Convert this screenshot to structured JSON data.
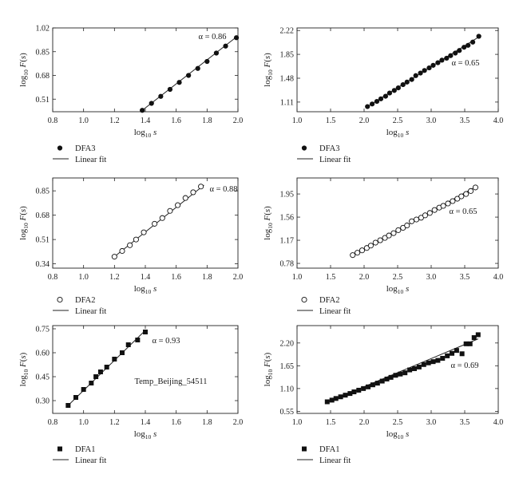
{
  "chart_data": [
    {
      "type": "scatter",
      "xlabel": "log10 s",
      "ylabel": "log10 F(s)",
      "xlim": [
        0.8,
        2.0
      ],
      "ylim": [
        0.42,
        1.02
      ],
      "xticks": [
        "0.8",
        "1.0",
        "1.2",
        "1.4",
        "1.6",
        "1.8",
        "2.0"
      ],
      "yticks": [
        "0.51",
        "0.68",
        "0.85",
        "1.02"
      ],
      "annotation": "α = 0.86",
      "legend": [
        {
          "marker": "filled-circle",
          "label": "DFA3"
        },
        {
          "marker": "line",
          "label": "Linear fit"
        }
      ],
      "marker": "filled-circle",
      "series": [
        {
          "x": [
            1.38,
            1.44,
            1.5,
            1.56,
            1.62,
            1.68,
            1.74,
            1.8,
            1.86,
            1.92,
            1.99
          ],
          "y": [
            0.43,
            0.48,
            0.53,
            0.58,
            0.63,
            0.68,
            0.73,
            0.78,
            0.84,
            0.89,
            0.95
          ]
        }
      ],
      "fit": {
        "x": [
          1.38,
          1.99
        ],
        "y": [
          0.43,
          0.955
        ]
      }
    },
    {
      "type": "scatter",
      "xlabel": "log10 s",
      "ylabel": "log10 F(s)",
      "xlim": [
        1.0,
        4.0
      ],
      "ylim": [
        0.96,
        2.26
      ],
      "xticks": [
        "1.0",
        "1.5",
        "2.0",
        "2.5",
        "3.0",
        "3.5",
        "4.0"
      ],
      "yticks": [
        "1.11",
        "1.48",
        "1.85",
        "2.22"
      ],
      "annotation": "α = 0.65",
      "legend": [
        {
          "marker": "filled-circle",
          "label": "DFA3"
        },
        {
          "marker": "line",
          "label": "Linear fit"
        }
      ],
      "marker": "filled-circle",
      "series": [
        {
          "x": [
            2.05,
            2.12,
            2.19,
            2.25,
            2.32,
            2.38,
            2.45,
            2.51,
            2.58,
            2.64,
            2.71,
            2.77,
            2.84,
            2.9,
            2.97,
            3.03,
            3.1,
            3.16,
            3.23,
            3.29,
            3.36,
            3.42,
            3.49,
            3.55,
            3.62,
            3.71
          ],
          "y": [
            1.04,
            1.08,
            1.12,
            1.16,
            1.2,
            1.25,
            1.29,
            1.33,
            1.38,
            1.42,
            1.46,
            1.52,
            1.56,
            1.6,
            1.64,
            1.68,
            1.72,
            1.76,
            1.79,
            1.83,
            1.87,
            1.91,
            1.96,
            1.99,
            2.04,
            2.13
          ]
        }
      ],
      "fit": {
        "x": [
          2.05,
          3.71
        ],
        "y": [
          1.04,
          2.12
        ]
      }
    },
    {
      "type": "scatter",
      "xlabel": "log10 s",
      "ylabel": "log10 F(s)",
      "xlim": [
        0.8,
        2.0
      ],
      "ylim": [
        0.31,
        0.94
      ],
      "xticks": [
        "0.8",
        "1.0",
        "1.2",
        "1.4",
        "1.6",
        "1.8",
        "2.0"
      ],
      "yticks": [
        "0.34",
        "0.51",
        "0.68",
        "0.85"
      ],
      "annotation": "α = 0.88",
      "legend": [
        {
          "marker": "open-circle",
          "label": "DFA2"
        },
        {
          "marker": "line",
          "label": "Linear fit"
        }
      ],
      "marker": "open-circle",
      "series": [
        {
          "x": [
            1.2,
            1.25,
            1.3,
            1.34,
            1.39,
            1.46,
            1.51,
            1.56,
            1.61,
            1.66,
            1.71,
            1.76
          ],
          "y": [
            0.39,
            0.43,
            0.47,
            0.51,
            0.56,
            0.62,
            0.66,
            0.71,
            0.75,
            0.8,
            0.84,
            0.88
          ]
        }
      ],
      "fit": {
        "x": [
          1.2,
          1.78
        ],
        "y": [
          0.39,
          0.89
        ]
      }
    },
    {
      "type": "scatter",
      "xlabel": "log10 s",
      "ylabel": "log10 F(s)",
      "xlim": [
        1.0,
        4.0
      ],
      "ylim": [
        0.7,
        2.22
      ],
      "xticks": [
        "1.0",
        "1.5",
        "2.0",
        "2.5",
        "3.0",
        "3.5",
        "4.0"
      ],
      "yticks": [
        "0.78",
        "1.17",
        "1.56",
        "1.95"
      ],
      "annotation": "α = 0.65",
      "legend": [
        {
          "marker": "open-circle",
          "label": "DFA2"
        },
        {
          "marker": "line",
          "label": "Linear fit"
        }
      ],
      "marker": "open-circle",
      "series": [
        {
          "x": [
            1.83,
            1.9,
            1.97,
            2.04,
            2.1,
            2.17,
            2.24,
            2.31,
            2.37,
            2.44,
            2.51,
            2.58,
            2.64,
            2.71,
            2.78,
            2.85,
            2.91,
            2.98,
            3.05,
            3.12,
            3.18,
            3.25,
            3.32,
            3.39,
            3.45,
            3.52,
            3.59,
            3.66
          ],
          "y": [
            0.92,
            0.96,
            1.0,
            1.04,
            1.08,
            1.13,
            1.17,
            1.21,
            1.25,
            1.29,
            1.34,
            1.38,
            1.42,
            1.49,
            1.52,
            1.55,
            1.59,
            1.63,
            1.68,
            1.72,
            1.75,
            1.79,
            1.83,
            1.87,
            1.91,
            1.95,
            2.0,
            2.06
          ]
        }
      ],
      "fit": {
        "x": [
          1.83,
          3.66
        ],
        "y": [
          0.91,
          2.07
        ]
      }
    },
    {
      "type": "scatter",
      "xlabel": "log10 s",
      "ylabel": "log10 F(s)",
      "xlim": [
        0.8,
        2.0
      ],
      "ylim": [
        0.22,
        0.77
      ],
      "xticks": [
        "0.8",
        "1.0",
        "1.2",
        "1.4",
        "1.6",
        "1.8",
        "2.0"
      ],
      "yticks": [
        "0.30",
        "0.45",
        "0.60",
        "0.75"
      ],
      "annotation": "α = 0.93",
      "text": "Temp_Beijing_54511",
      "legend": [
        {
          "marker": "filled-square",
          "label": "DFA1"
        },
        {
          "marker": "line",
          "label": "Linear fit"
        }
      ],
      "marker": "filled-square",
      "series": [
        {
          "x": [
            0.9,
            0.95,
            1.0,
            1.05,
            1.08,
            1.11,
            1.15,
            1.2,
            1.25,
            1.29,
            1.35,
            1.4
          ],
          "y": [
            0.27,
            0.32,
            0.37,
            0.41,
            0.45,
            0.48,
            0.51,
            0.56,
            0.6,
            0.65,
            0.68,
            0.73
          ]
        }
      ],
      "fit": {
        "x": [
          0.9,
          1.4
        ],
        "y": [
          0.27,
          0.74
        ]
      }
    },
    {
      "type": "scatter",
      "xlabel": "log10 s",
      "ylabel": "log10 F(s)",
      "xlim": [
        1.0,
        4.0
      ],
      "ylim": [
        0.5,
        2.62
      ],
      "xticks": [
        "1.0",
        "1.5",
        "2.0",
        "2.5",
        "3.0",
        "3.5",
        "4.0"
      ],
      "yticks": [
        "0.55",
        "1.10",
        "1.65",
        "2.20"
      ],
      "annotation": "α = 0.69",
      "legend": [
        {
          "marker": "filled-square",
          "label": "DFA1"
        },
        {
          "marker": "line",
          "label": "Linear fit"
        }
      ],
      "marker": "filled-square",
      "series": [
        {
          "x": [
            1.45,
            1.52,
            1.58,
            1.65,
            1.72,
            1.79,
            1.85,
            1.92,
            1.99,
            2.06,
            2.13,
            2.2,
            2.27,
            2.34,
            2.4,
            2.47,
            2.54,
            2.61,
            2.68,
            2.75,
            2.82,
            2.89,
            2.96,
            3.03,
            3.1,
            3.17,
            3.24,
            3.31,
            3.38,
            3.46,
            3.52,
            3.58,
            3.64,
            3.7
          ],
          "y": [
            0.78,
            0.82,
            0.86,
            0.9,
            0.94,
            0.98,
            1.02,
            1.06,
            1.1,
            1.14,
            1.19,
            1.23,
            1.28,
            1.33,
            1.37,
            1.42,
            1.45,
            1.48,
            1.55,
            1.58,
            1.62,
            1.68,
            1.72,
            1.75,
            1.78,
            1.83,
            1.89,
            1.95,
            2.02,
            1.94,
            2.18,
            2.18,
            2.33,
            2.4
          ]
        }
      ],
      "fit": {
        "x": [
          1.45,
          3.7
        ],
        "y": [
          0.77,
          2.3
        ]
      }
    }
  ]
}
